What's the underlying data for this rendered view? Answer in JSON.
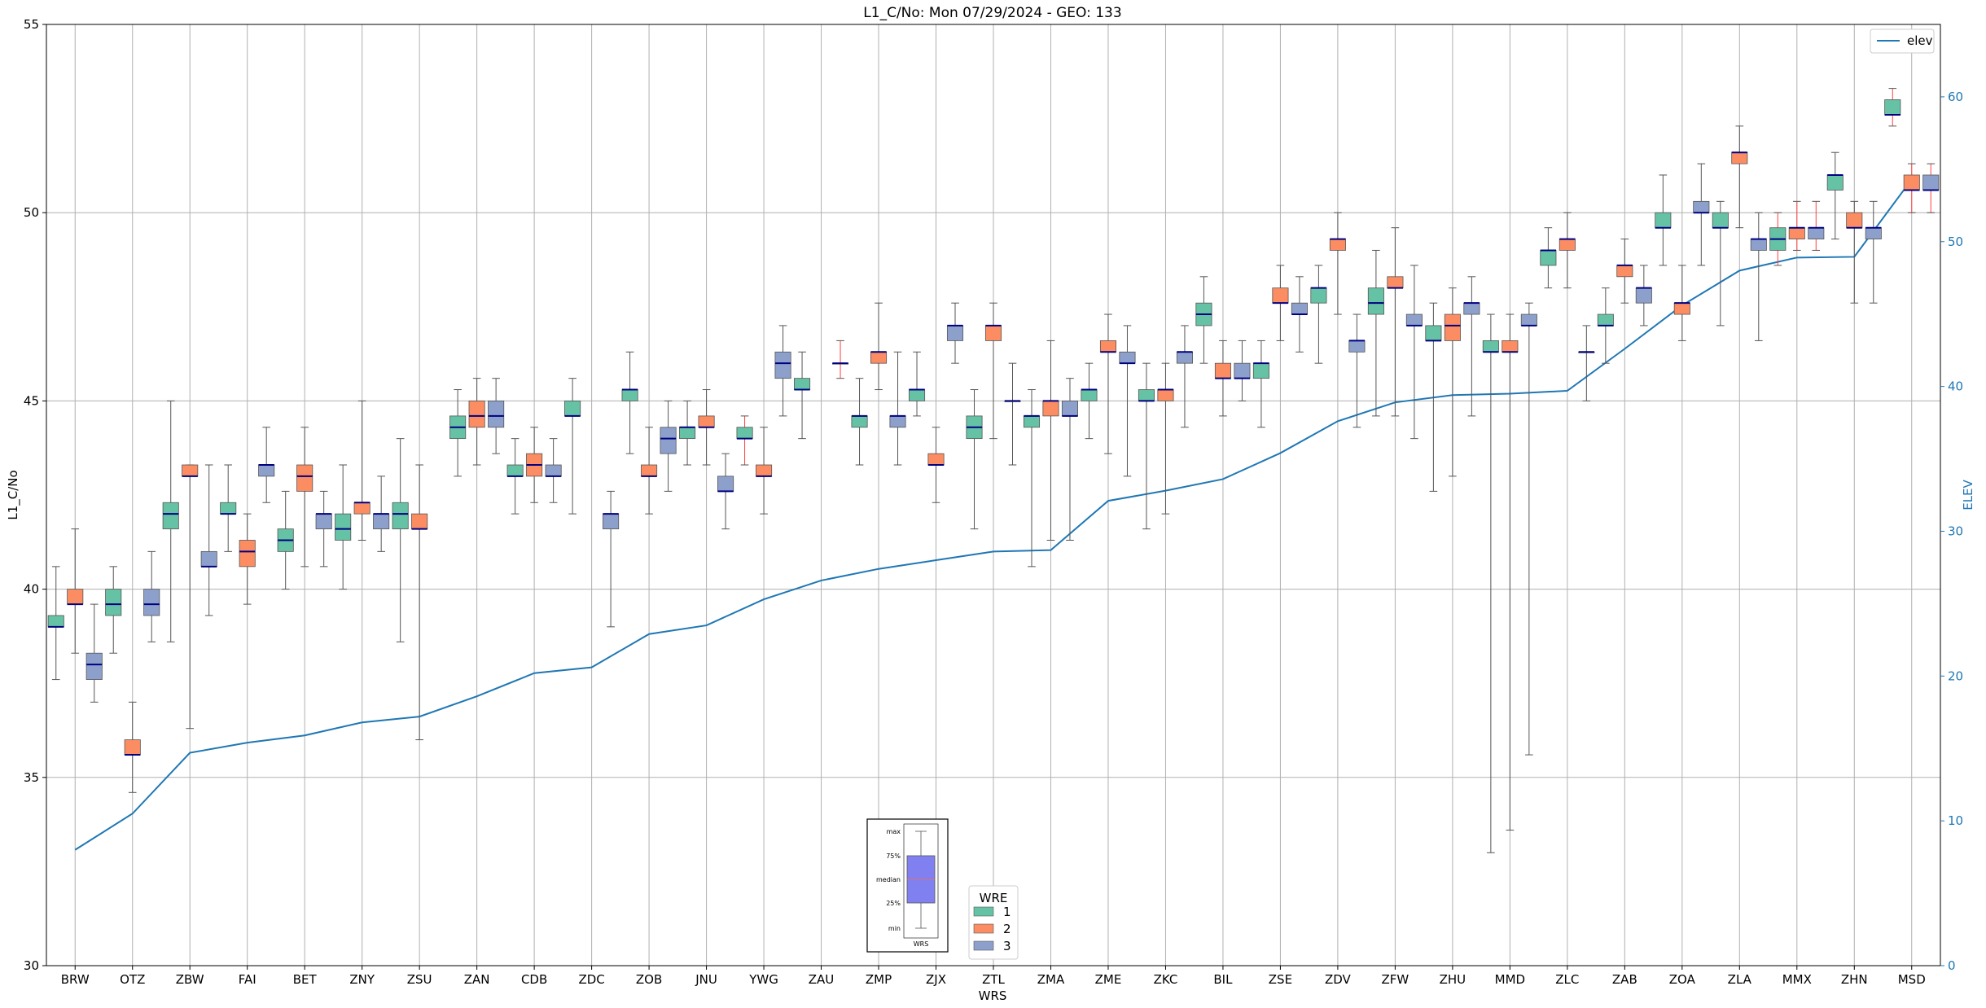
{
  "chart_data": {
    "type": "box",
    "title": "L1_C/No: Mon 07/29/2024 - GEO: 133",
    "xlabel": "WRS",
    "ylabel": "L1_C/No",
    "ylabel_right": "ELEV",
    "ylim": [
      30,
      55
    ],
    "ylim_right": [
      0,
      65
    ],
    "yticks": [
      30,
      35,
      40,
      45,
      50,
      55
    ],
    "yticks_right": [
      0,
      10,
      20,
      30,
      40,
      50,
      60
    ],
    "grid": true,
    "categories": [
      "BRW",
      "OTZ",
      "ZBW",
      "FAI",
      "BET",
      "ZNY",
      "ZSU",
      "ZAN",
      "CDB",
      "ZDC",
      "ZOB",
      "JNU",
      "YWG",
      "ZAU",
      "ZMP",
      "ZJX",
      "ZTL",
      "ZMA",
      "ZME",
      "ZKC",
      "BIL",
      "ZSE",
      "ZDV",
      "ZFW",
      "ZHU",
      "MMD",
      "ZLC",
      "ZAB",
      "ZOA",
      "ZLA",
      "MMX",
      "ZHN",
      "MSD"
    ],
    "colors": {
      "1": "#66c2a5",
      "2": "#fc8d62",
      "3": "#8da0cb",
      "elev": "#1f77b4",
      "median": "#000080",
      "whisker": "#555555"
    },
    "legend_wre": {
      "title": "WRE",
      "items": [
        "1",
        "2",
        "3"
      ],
      "placement": "bottom-center"
    },
    "legend_elev": {
      "label": "elev",
      "placement": "top-right"
    },
    "inset_labels": {
      "max": "max",
      "q3": "75%",
      "median": "median",
      "q1": "25%",
      "min": "min",
      "xlabel": "WRS"
    },
    "series": [
      {
        "name": "1",
        "boxes": [
          [
            0,
            37.6,
            39.0,
            39.0,
            39.3,
            40.6
          ],
          [
            1,
            38.3,
            39.3,
            39.6,
            40.0,
            40.6
          ],
          [
            2,
            38.6,
            41.6,
            42.0,
            42.3,
            45.0
          ],
          [
            3,
            41.0,
            42.0,
            42.0,
            42.3,
            43.3
          ],
          [
            4,
            40.0,
            41.0,
            41.3,
            41.6,
            42.6
          ],
          [
            5,
            40.0,
            41.3,
            41.6,
            42.0,
            43.3
          ],
          [
            6,
            38.6,
            41.6,
            42.0,
            42.3,
            44.0
          ],
          [
            7,
            43.0,
            44.0,
            44.3,
            44.6,
            45.3
          ],
          [
            8,
            42.0,
            43.0,
            43.0,
            43.3,
            44.0
          ],
          [
            9,
            42.0,
            44.6,
            44.6,
            45.0,
            45.6
          ],
          [
            10,
            43.6,
            45.0,
            45.3,
            45.3,
            46.3
          ],
          [
            11,
            43.3,
            44.0,
            44.3,
            44.3,
            45.0
          ],
          [
            12,
            43.3,
            44.0,
            44.0,
            44.3,
            44.6
          ],
          [
            13,
            44.0,
            45.3,
            45.3,
            45.6,
            46.3
          ],
          [
            14,
            43.3,
            44.3,
            44.6,
            44.6,
            45.6
          ],
          [
            15,
            44.6,
            45.0,
            45.3,
            45.3,
            46.3
          ],
          [
            16,
            41.6,
            44.0,
            44.3,
            44.6,
            45.3
          ],
          [
            17,
            40.6,
            44.3,
            44.6,
            44.6,
            45.3
          ],
          [
            18,
            44.0,
            45.0,
            45.3,
            45.3,
            46.0
          ],
          [
            19,
            41.6,
            45.0,
            45.0,
            45.3,
            46.0
          ],
          [
            20,
            46.0,
            47.0,
            47.3,
            47.6,
            48.3
          ],
          [
            21,
            44.3,
            45.6,
            46.0,
            46.0,
            46.6
          ],
          [
            22,
            46.0,
            47.6,
            48.0,
            48.0,
            48.6
          ],
          [
            23,
            44.6,
            47.3,
            47.6,
            48.0,
            49.0
          ],
          [
            24,
            42.6,
            46.6,
            46.6,
            47.0,
            47.6
          ],
          [
            25,
            33.0,
            46.3,
            46.3,
            46.6,
            47.3
          ],
          [
            26,
            48.0,
            48.6,
            49.0,
            49.0,
            49.6
          ],
          [
            27,
            46.0,
            47.0,
            47.0,
            47.3,
            48.0
          ],
          [
            28,
            48.6,
            49.6,
            49.6,
            50.0,
            51.0
          ],
          [
            29,
            47.0,
            49.6,
            49.6,
            50.0,
            50.3
          ],
          [
            30,
            48.6,
            49.0,
            49.3,
            49.6,
            50.0
          ],
          [
            31,
            49.3,
            50.6,
            51.0,
            51.0,
            51.6
          ],
          [
            32,
            52.3,
            52.6,
            52.6,
            53.0,
            53.3
          ]
        ]
      },
      {
        "name": "2",
        "boxes": [
          [
            0,
            38.3,
            39.6,
            39.6,
            40.0,
            41.6
          ],
          [
            1,
            34.6,
            35.6,
            35.6,
            36.0,
            37.0
          ],
          [
            2,
            36.3,
            43.0,
            43.0,
            43.3,
            43.3
          ],
          [
            3,
            39.6,
            40.6,
            41.0,
            41.3,
            42.0
          ],
          [
            4,
            40.6,
            42.6,
            43.0,
            43.3,
            44.3
          ],
          [
            5,
            41.3,
            42.0,
            42.3,
            42.3,
            45.0
          ],
          [
            6,
            36.0,
            41.6,
            41.6,
            42.0,
            43.3
          ],
          [
            7,
            43.3,
            44.3,
            44.6,
            45.0,
            45.6
          ],
          [
            8,
            42.3,
            43.0,
            43.3,
            43.6,
            44.3
          ],
          [
            10,
            42.0,
            43.0,
            43.0,
            43.3,
            44.3
          ],
          [
            11,
            43.3,
            44.3,
            44.3,
            44.6,
            45.3
          ],
          [
            12,
            42.0,
            43.0,
            43.0,
            43.3,
            44.3
          ],
          [
            14,
            45.3,
            46.0,
            46.3,
            46.3,
            47.6
          ],
          [
            15,
            42.3,
            43.3,
            43.3,
            43.6,
            44.3
          ],
          [
            16,
            44.0,
            46.6,
            47.0,
            47.0,
            47.6
          ],
          [
            17,
            41.3,
            44.6,
            45.0,
            45.0,
            46.6
          ],
          [
            18,
            43.6,
            46.3,
            46.3,
            46.6,
            47.3
          ],
          [
            19,
            42.0,
            45.0,
            45.3,
            45.3,
            46.0
          ],
          [
            20,
            44.6,
            45.6,
            45.6,
            46.0,
            46.6
          ],
          [
            21,
            46.6,
            47.6,
            47.6,
            48.0,
            48.6
          ],
          [
            22,
            47.3,
            49.0,
            49.3,
            49.3,
            50.0
          ],
          [
            23,
            44.6,
            48.0,
            48.0,
            48.3,
            49.6
          ],
          [
            24,
            43.0,
            46.6,
            47.0,
            47.3,
            48.0
          ],
          [
            25,
            33.6,
            46.3,
            46.3,
            46.6,
            47.3
          ],
          [
            26,
            48.0,
            49.0,
            49.3,
            49.3,
            50.0
          ],
          [
            27,
            47.6,
            48.3,
            48.6,
            48.6,
            49.3
          ],
          [
            28,
            46.6,
            47.3,
            47.6,
            47.6,
            48.6
          ],
          [
            29,
            49.6,
            51.3,
            51.6,
            51.6,
            52.3
          ],
          [
            30,
            49.0,
            49.3,
            49.6,
            49.6,
            50.3
          ],
          [
            31,
            47.6,
            49.6,
            49.6,
            50.0,
            50.3
          ],
          [
            32,
            50.0,
            50.6,
            50.6,
            51.0,
            51.3
          ]
        ]
      },
      {
        "name": "3",
        "boxes": [
          [
            0,
            37.0,
            37.6,
            38.0,
            38.3,
            39.6
          ],
          [
            1,
            38.6,
            39.3,
            39.6,
            40.0,
            41.0
          ],
          [
            2,
            39.3,
            40.6,
            40.6,
            41.0,
            43.3
          ],
          [
            3,
            42.3,
            43.0,
            43.3,
            43.3,
            44.3
          ],
          [
            4,
            40.6,
            41.6,
            42.0,
            42.0,
            42.6
          ],
          [
            5,
            41.0,
            41.6,
            42.0,
            42.0,
            43.0
          ],
          [
            7,
            43.6,
            44.3,
            44.6,
            45.0,
            45.6
          ],
          [
            8,
            42.3,
            43.0,
            43.0,
            43.3,
            44.0
          ],
          [
            9,
            39.0,
            41.6,
            42.0,
            42.0,
            42.6
          ],
          [
            10,
            42.6,
            43.6,
            44.0,
            44.3,
            45.0
          ],
          [
            11,
            41.6,
            42.6,
            42.6,
            43.0,
            43.6
          ],
          [
            12,
            44.6,
            45.6,
            46.0,
            46.3,
            47.0
          ],
          [
            13,
            45.6,
            46.0,
            46.0,
            46.0,
            46.6
          ],
          [
            14,
            43.3,
            44.3,
            44.6,
            44.6,
            46.3
          ],
          [
            15,
            46.0,
            46.6,
            47.0,
            47.0,
            47.6
          ],
          [
            16,
            43.3,
            45.0,
            45.0,
            45.0,
            46.0
          ],
          [
            17,
            41.3,
            44.6,
            44.6,
            45.0,
            45.6
          ],
          [
            18,
            43.0,
            46.0,
            46.0,
            46.3,
            47.0
          ],
          [
            19,
            44.3,
            46.0,
            46.3,
            46.3,
            47.0
          ],
          [
            20,
            45.0,
            45.6,
            45.6,
            46.0,
            46.6
          ],
          [
            21,
            46.3,
            47.3,
            47.3,
            47.6,
            48.3
          ],
          [
            22,
            44.3,
            46.3,
            46.6,
            46.6,
            47.3
          ],
          [
            23,
            44.0,
            47.0,
            47.0,
            47.3,
            48.6
          ],
          [
            24,
            44.6,
            47.3,
            47.6,
            47.6,
            48.3
          ],
          [
            25,
            35.6,
            47.0,
            47.0,
            47.3,
            47.6
          ],
          [
            26,
            45.0,
            46.3,
            46.3,
            46.3,
            47.0
          ],
          [
            27,
            47.0,
            47.6,
            48.0,
            48.0,
            48.6
          ],
          [
            28,
            48.6,
            50.0,
            50.0,
            50.3,
            51.3
          ],
          [
            29,
            46.6,
            49.0,
            49.3,
            49.3,
            50.0
          ],
          [
            30,
            49.0,
            49.3,
            49.6,
            49.6,
            50.3
          ],
          [
            31,
            47.6,
            49.3,
            49.6,
            49.6,
            50.3
          ],
          [
            32,
            50.0,
            50.6,
            50.6,
            51.0,
            51.3
          ]
        ]
      }
    ],
    "elev": [
      8.0,
      10.5,
      14.7,
      15.4,
      15.9,
      16.8,
      17.2,
      18.6,
      20.2,
      20.6,
      22.9,
      23.5,
      25.3,
      26.6,
      27.4,
      28.0,
      28.6,
      28.7,
      32.1,
      32.8,
      33.6,
      35.4,
      37.6,
      38.9,
      39.4,
      39.5,
      39.7,
      42.6,
      45.6,
      48.0,
      48.9,
      48.95,
      54.3
    ]
  }
}
